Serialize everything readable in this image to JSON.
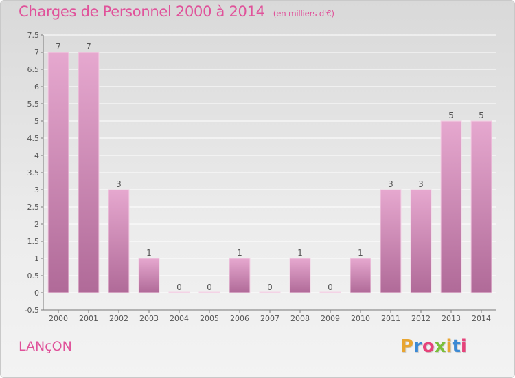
{
  "header": {
    "title": "Charges de Personnel 2000 à 2014",
    "subtitle": "(en milliers d'€)"
  },
  "footer": {
    "city": "LANçON",
    "logo_letters": [
      "P",
      "r",
      "o",
      "x",
      "i",
      "t",
      "i"
    ],
    "logo_colors": [
      "#e8a531",
      "#3b89d4",
      "#e6427a",
      "#7bbf3a",
      "#e8a531",
      "#3b89d4",
      "#e6427a"
    ]
  },
  "colors": {
    "bar_top": "#e6a8cf",
    "bar_bottom": "#b06a98",
    "axis_text": "#555555",
    "grid": "#ffffff"
  },
  "chart_data": {
    "type": "bar",
    "categories": [
      "2000",
      "2001",
      "2002",
      "2003",
      "2004",
      "2005",
      "2006",
      "2007",
      "2008",
      "2009",
      "2010",
      "2011",
      "2012",
      "2013",
      "2014"
    ],
    "values": [
      7,
      7,
      3,
      1,
      0,
      0,
      1,
      0,
      1,
      0,
      1,
      3,
      3,
      5,
      5
    ],
    "data_labels": [
      "7",
      "7",
      "3",
      "1",
      "0",
      "0",
      "1",
      "0",
      "1",
      "0",
      "1",
      "3",
      "3",
      "5",
      "5"
    ],
    "yticks": [
      -0.5,
      0,
      0.5,
      1,
      1.5,
      2,
      2.5,
      3,
      3.5,
      4,
      4.5,
      5,
      5.5,
      6,
      6.5,
      7,
      7.5
    ],
    "ytick_labels": [
      "-0,5",
      "0",
      "0.5",
      "1",
      "1.5",
      "2",
      "2.5",
      "3",
      "3.5",
      "4",
      "4.5",
      "5",
      "5.5",
      "6",
      "6.5",
      "7",
      "7.5"
    ],
    "ylim": [
      -0.5,
      7.5
    ],
    "grid": true
  }
}
